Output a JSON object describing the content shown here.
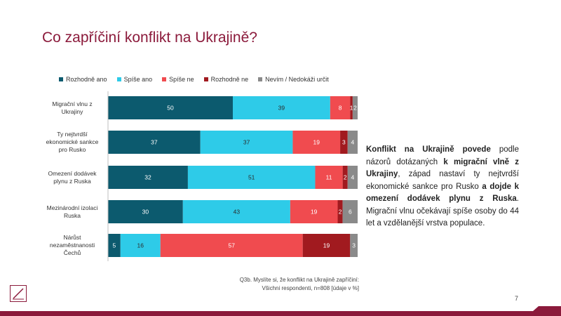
{
  "slide": {
    "title": "Co zapříčiní konflikt na Ukrajině?",
    "page_number": "7",
    "source_line1": "Q3b. Myslíte si, že konflikt na Ukrajině zapříčiní:",
    "source_line2": "Všichni respondenti, n=808 [údaje v %]"
  },
  "note": {
    "p1": "Konflikt na Ukrajině povede",
    "p2": " podle názorů dotázaných ",
    "p3": "k migrační vlně z Ukrajiny",
    "p4": ", západ nastaví ty nejtvrdší ekonomické sankce pro Rusko ",
    "p5": "a dojde k omezení dodávek plynu z Ruska",
    "p6": ". Migrační vlnu očekávají spíše osoby do 44 let a vzdělanější vrstva populace."
  },
  "colors": {
    "accent": "#8b1a3b",
    "series": [
      "#0c5a6e",
      "#2ecbe8",
      "#f04b4f",
      "#a11a1f",
      "#8a8a8a"
    ]
  },
  "chart_data": {
    "type": "bar",
    "orientation": "horizontal",
    "stacked": true,
    "title": "Co zapříčiní konflikt na Ukrajině?",
    "xlim": [
      0,
      100
    ],
    "unit": "%",
    "categories": [
      "Migrační vlnu z Ukrajiny",
      "Ty nejtvrdší ekonomické sankce pro Rusko",
      "Omezení dodávek plynu z Ruska",
      "Mezinárodní izolaci Ruska",
      "Nárůst nezaměstnanosti Čechů"
    ],
    "category_lines": [
      [
        "Migrační vlnu z",
        "Ukrajiny"
      ],
      [
        "Ty nejtvrdší",
        "ekonomické sankce",
        "pro Rusko"
      ],
      [
        "Omezení dodávek",
        "plynu z Ruska"
      ],
      [
        "Mezinárodní izolaci",
        "Ruska"
      ],
      [
        "Nárůst",
        "nezaměstnanosti",
        "Čechů"
      ]
    ],
    "series": [
      {
        "name": "Rozhodně ano",
        "values": [
          50,
          37,
          32,
          30,
          5
        ]
      },
      {
        "name": "Spíše ano",
        "values": [
          39,
          37,
          51,
          43,
          16
        ]
      },
      {
        "name": "Spíše ne",
        "values": [
          8,
          19,
          11,
          19,
          57
        ]
      },
      {
        "name": "Rozhodně ne",
        "values": [
          1,
          3,
          2,
          2,
          19
        ]
      },
      {
        "name": "Nevím / Nedokáži určit",
        "values": [
          2,
          4,
          4,
          6,
          3
        ]
      }
    ],
    "legend_position": "top"
  }
}
